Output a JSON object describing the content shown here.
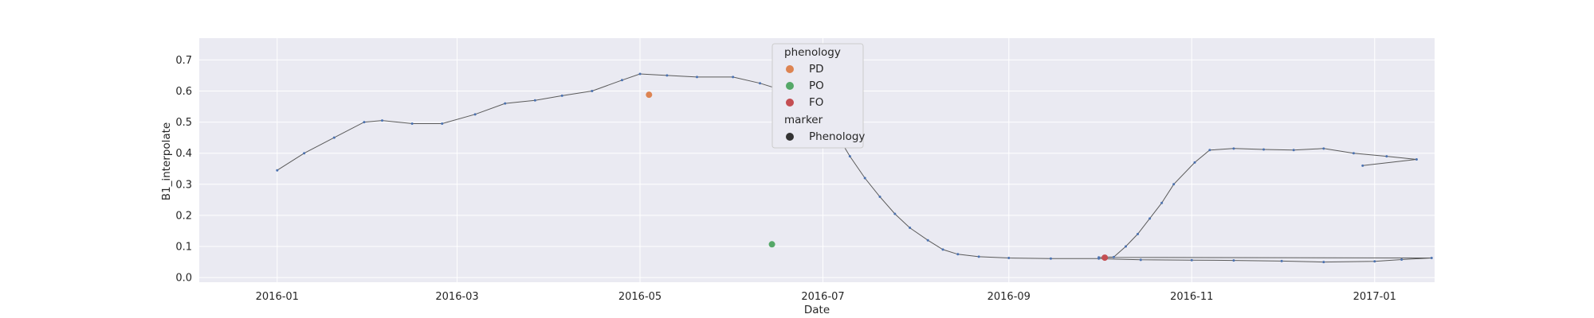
{
  "chart_data": {
    "type": "line",
    "xlabel": "Date",
    "ylabel": "B1_interpolate",
    "xlim": [
      "2015-12-06",
      "2017-01-21"
    ],
    "ylim": [
      -0.015,
      0.77
    ],
    "x_ticks": [
      "2016-01-01",
      "2016-03-01",
      "2016-05-01",
      "2016-07-01",
      "2016-09-01",
      "2016-11-01",
      "2017-01-01"
    ],
    "x_tick_labels": [
      "2016-01",
      "2016-03",
      "2016-05",
      "2016-07",
      "2016-09",
      "2016-11",
      "2017-01"
    ],
    "y_ticks": [
      0.0,
      0.1,
      0.2,
      0.3,
      0.4,
      0.5,
      0.6,
      0.7
    ],
    "y_tick_labels": [
      "0.0",
      "0.1",
      "0.2",
      "0.3",
      "0.4",
      "0.5",
      "0.6",
      "0.7"
    ],
    "grid": true,
    "legend_position": "top-center",
    "colors": {
      "background": "#EAEAF2",
      "grid": "#FFFFFF",
      "line": "#4C72B0",
      "raw_points": "#FFFFFF"
    },
    "series": [
      {
        "role": "line",
        "points": [
          [
            "2016-01-01",
            0.345
          ],
          [
            "2016-01-10",
            0.4
          ],
          [
            "2016-01-20",
            0.45
          ],
          [
            "2016-01-30",
            0.5
          ],
          [
            "2016-02-05",
            0.505
          ],
          [
            "2016-02-15",
            0.495
          ],
          [
            "2016-02-25",
            0.495
          ],
          [
            "2016-03-07",
            0.525
          ],
          [
            "2016-03-17",
            0.56
          ],
          [
            "2016-03-27",
            0.57
          ],
          [
            "2016-04-05",
            0.585
          ],
          [
            "2016-04-15",
            0.6
          ],
          [
            "2016-04-25",
            0.635
          ],
          [
            "2016-05-01",
            0.655
          ],
          [
            "2016-05-10",
            0.65
          ],
          [
            "2016-05-20",
            0.645
          ],
          [
            "2016-06-01",
            0.645
          ],
          [
            "2016-06-10",
            0.625
          ],
          [
            "2016-06-20",
            0.595
          ],
          [
            "2016-06-25",
            0.575
          ],
          [
            "2016-06-30",
            0.55
          ],
          [
            "2016-07-02",
            0.525
          ],
          [
            "2016-07-05",
            0.47
          ],
          [
            "2016-07-10",
            0.39
          ],
          [
            "2016-07-15",
            0.32
          ],
          [
            "2016-07-20",
            0.26
          ],
          [
            "2016-07-25",
            0.205
          ],
          [
            "2016-07-30",
            0.16
          ],
          [
            "2016-08-05",
            0.12
          ],
          [
            "2016-08-10",
            0.09
          ],
          [
            "2016-08-15",
            0.075
          ],
          [
            "2016-08-22",
            0.067
          ],
          [
            "2016-09-01",
            0.063
          ],
          [
            "2016-09-15",
            0.061
          ],
          [
            "2016-10-01",
            0.061
          ],
          [
            "2016-10-15",
            0.057
          ],
          [
            "2016-11-01",
            0.056
          ],
          [
            "2016-11-15",
            0.055
          ],
          [
            "2016-12-01",
            0.053
          ],
          [
            "2016-12-15",
            0.05
          ],
          [
            "2017-01-01",
            0.052
          ],
          [
            "2017-01-10",
            0.058
          ],
          [
            "2017-01-20",
            0.063
          ],
          [
            "2016-10-01",
            0.065
          ],
          [
            "2016-10-06",
            0.066
          ],
          [
            "2016-10-10",
            0.1
          ],
          [
            "2016-10-14",
            0.14
          ],
          [
            "2016-10-18",
            0.19
          ],
          [
            "2016-10-22",
            0.24
          ],
          [
            "2016-10-26",
            0.3
          ],
          [
            "2016-11-02",
            0.37
          ],
          [
            "2016-11-07",
            0.41
          ],
          [
            "2016-11-15",
            0.415
          ],
          [
            "2016-11-25",
            0.412
          ],
          [
            "2016-12-05",
            0.41
          ],
          [
            "2016-12-15",
            0.415
          ],
          [
            "2016-12-25",
            0.4
          ],
          [
            "2017-01-05",
            0.39
          ],
          [
            "2017-01-15",
            0.38
          ],
          [
            "2016-12-28",
            0.36
          ]
        ]
      },
      {
        "name": "PD",
        "color": "#DD8452",
        "points": [
          [
            "2016-05-04",
            0.588
          ]
        ]
      },
      {
        "name": "PO",
        "color": "#55A868",
        "points": [
          [
            "2016-06-14",
            0.107
          ]
        ]
      },
      {
        "name": "FO",
        "color": "#C44E52",
        "points": [
          [
            "2016-10-03",
            0.064
          ]
        ]
      }
    ],
    "legend": {
      "hue_title": "phenology",
      "hue_entries": [
        {
          "label": "PD",
          "color": "#DD8452"
        },
        {
          "label": "PO",
          "color": "#55A868"
        },
        {
          "label": "FO",
          "color": "#C44E52"
        }
      ],
      "marker_title": "marker",
      "marker_entries": [
        {
          "label": "Phenology",
          "color": "#333333"
        }
      ]
    }
  }
}
